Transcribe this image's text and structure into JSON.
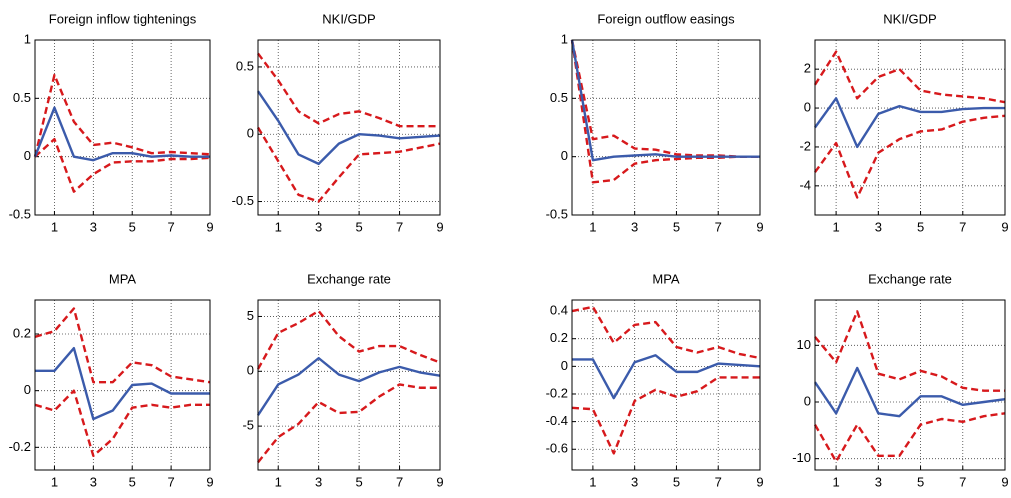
{
  "chart_data": [
    {
      "type": "line",
      "title": "Foreign inflow tightenings",
      "x": [
        0,
        1,
        2,
        3,
        4,
        5,
        6,
        7,
        8,
        9
      ],
      "xlim": [
        0,
        9
      ],
      "xticks": [
        1,
        3,
        5,
        7,
        9
      ],
      "ylim": [
        -0.5,
        1
      ],
      "yticks": [
        -0.5,
        0,
        0.5,
        1
      ],
      "grid": true,
      "series": [
        {
          "color": "#d7191c",
          "linestyle": "dashed",
          "values": [
            0,
            0.7,
            0.3,
            0.1,
            0.12,
            0.08,
            0.03,
            0.04,
            0.03,
            0.02
          ]
        },
        {
          "color": "#d7191c",
          "linestyle": "dashed",
          "values": [
            0,
            0.15,
            -0.3,
            -0.15,
            -0.05,
            -0.04,
            -0.04,
            -0.02,
            -0.02,
            -0.01
          ]
        },
        {
          "color": "#3b5bab",
          "linestyle": "solid",
          "values": [
            0,
            0.42,
            0,
            -0.03,
            0.03,
            0.03,
            0,
            0.01,
            0,
            0
          ]
        }
      ]
    },
    {
      "type": "line",
      "title": "NKI/GDP",
      "x": [
        0,
        1,
        2,
        3,
        4,
        5,
        6,
        7,
        8,
        9
      ],
      "xlim": [
        0,
        9
      ],
      "xticks": [
        1,
        3,
        5,
        7,
        9
      ],
      "ylim": [
        -0.6,
        0.7
      ],
      "yticks": [
        -0.5,
        0,
        0.5
      ],
      "grid": true,
      "series": [
        {
          "color": "#d7191c",
          "linestyle": "dashed",
          "values": [
            0.6,
            0.4,
            0.17,
            0.08,
            0.15,
            0.17,
            0.12,
            0.06,
            0.06,
            0.06
          ]
        },
        {
          "color": "#d7191c",
          "linestyle": "dashed",
          "values": [
            0.05,
            -0.2,
            -0.45,
            -0.5,
            -0.32,
            -0.15,
            -0.14,
            -0.13,
            -0.1,
            -0.07
          ]
        },
        {
          "color": "#3b5bab",
          "linestyle": "solid",
          "values": [
            0.32,
            0.1,
            -0.15,
            -0.22,
            -0.07,
            0,
            -0.01,
            -0.03,
            -0.02,
            -0.01
          ]
        }
      ]
    },
    {
      "type": "line",
      "title": "Foreign outflow easings",
      "x": [
        0,
        1,
        2,
        3,
        4,
        5,
        6,
        7,
        8,
        9
      ],
      "xlim": [
        0,
        9
      ],
      "xticks": [
        1,
        3,
        5,
        7,
        9
      ],
      "ylim": [
        -0.5,
        1
      ],
      "yticks": [
        -0.5,
        0,
        0.5,
        1
      ],
      "grid": true,
      "series": [
        {
          "color": "#d7191c",
          "linestyle": "dashed",
          "values": [
            1,
            0.15,
            0.18,
            0.07,
            0.06,
            0.02,
            0.01,
            0.01,
            0,
            0
          ]
        },
        {
          "color": "#d7191c",
          "linestyle": "dashed",
          "values": [
            1,
            -0.22,
            -0.2,
            -0.06,
            -0.03,
            -0.02,
            -0.01,
            -0.01,
            0,
            0
          ]
        },
        {
          "color": "#3b5bab",
          "linestyle": "solid",
          "values": [
            1,
            -0.03,
            0,
            0.01,
            0.02,
            0,
            0,
            0,
            0,
            0
          ]
        }
      ]
    },
    {
      "type": "line",
      "title": "NKI/GDP",
      "x": [
        0,
        1,
        2,
        3,
        4,
        5,
        6,
        7,
        8,
        9
      ],
      "xlim": [
        0,
        9
      ],
      "xticks": [
        1,
        3,
        5,
        7,
        9
      ],
      "ylim": [
        -5.5,
        3.5
      ],
      "yticks": [
        -4,
        -2,
        0,
        2
      ],
      "grid": true,
      "series": [
        {
          "color": "#d7191c",
          "linestyle": "dashed",
          "values": [
            1.2,
            2.9,
            0.5,
            1.6,
            2,
            0.9,
            0.7,
            0.6,
            0.5,
            0.3
          ]
        },
        {
          "color": "#d7191c",
          "linestyle": "dashed",
          "values": [
            -3.3,
            -1.8,
            -4.6,
            -2.3,
            -1.6,
            -1.2,
            -1.1,
            -0.7,
            -0.5,
            -0.4
          ]
        },
        {
          "color": "#3b5bab",
          "linestyle": "solid",
          "values": [
            -1,
            0.5,
            -2,
            -0.3,
            0.1,
            -0.2,
            -0.2,
            -0.05,
            0,
            0
          ]
        }
      ]
    },
    {
      "type": "line",
      "title": "MPA",
      "x": [
        0,
        1,
        2,
        3,
        4,
        5,
        6,
        7,
        8,
        9
      ],
      "xlim": [
        0,
        9
      ],
      "xticks": [
        1,
        3,
        5,
        7,
        9
      ],
      "ylim": [
        -0.28,
        0.32
      ],
      "yticks": [
        -0.2,
        0,
        0.2
      ],
      "grid": true,
      "series": [
        {
          "color": "#d7191c",
          "linestyle": "dashed",
          "values": [
            0.19,
            0.21,
            0.29,
            0.03,
            0.03,
            0.1,
            0.09,
            0.05,
            0.04,
            0.03
          ]
        },
        {
          "color": "#d7191c",
          "linestyle": "dashed",
          "values": [
            -0.05,
            -0.07,
            0,
            -0.23,
            -0.17,
            -0.06,
            -0.05,
            -0.06,
            -0.05,
            -0.05
          ]
        },
        {
          "color": "#3b5bab",
          "linestyle": "solid",
          "values": [
            0.07,
            0.07,
            0.15,
            -0.1,
            -0.07,
            0.02,
            0.025,
            -0.01,
            -0.01,
            -0.01
          ]
        }
      ]
    },
    {
      "type": "line",
      "title": "Exchange rate",
      "x": [
        0,
        1,
        2,
        3,
        4,
        5,
        6,
        7,
        8,
        9
      ],
      "xlim": [
        0,
        9
      ],
      "xticks": [
        1,
        3,
        5,
        7,
        9
      ],
      "ylim": [
        -9,
        6.5
      ],
      "yticks": [
        -5,
        0,
        5
      ],
      "grid": true,
      "series": [
        {
          "color": "#d7191c",
          "linestyle": "dashed",
          "values": [
            0.2,
            3.5,
            4.4,
            5.5,
            3.2,
            1.8,
            2.3,
            2.3,
            1.5,
            0.8
          ]
        },
        {
          "color": "#d7191c",
          "linestyle": "dashed",
          "values": [
            -8.3,
            -6,
            -4.8,
            -2.8,
            -3.8,
            -3.7,
            -2.3,
            -1.2,
            -1.5,
            -1.5
          ]
        },
        {
          "color": "#3b5bab",
          "linestyle": "solid",
          "values": [
            -4,
            -1.2,
            -0.3,
            1.2,
            -0.3,
            -0.9,
            -0.1,
            0.4,
            -0.1,
            -0.4
          ]
        }
      ]
    },
    {
      "type": "line",
      "title": "MPA",
      "x": [
        0,
        1,
        2,
        3,
        4,
        5,
        6,
        7,
        8,
        9
      ],
      "xlim": [
        0,
        9
      ],
      "xticks": [
        1,
        3,
        5,
        7,
        9
      ],
      "ylim": [
        -0.75,
        0.48
      ],
      "yticks": [
        -0.6,
        -0.4,
        -0.2,
        0,
        0.2,
        0.4
      ],
      "grid": true,
      "series": [
        {
          "color": "#d7191c",
          "linestyle": "dashed",
          "values": [
            0.4,
            0.43,
            0.17,
            0.3,
            0.32,
            0.14,
            0.1,
            0.14,
            0.09,
            0.06
          ]
        },
        {
          "color": "#d7191c",
          "linestyle": "dashed",
          "values": [
            -0.3,
            -0.31,
            -0.63,
            -0.25,
            -0.17,
            -0.22,
            -0.18,
            -0.08,
            -0.08,
            -0.08
          ]
        },
        {
          "color": "#3b5bab",
          "linestyle": "solid",
          "values": [
            0.05,
            0.05,
            -0.23,
            0.03,
            0.08,
            -0.04,
            -0.04,
            0.02,
            0.01,
            0
          ]
        }
      ]
    },
    {
      "type": "line",
      "title": "Exchange rate",
      "x": [
        0,
        1,
        2,
        3,
        4,
        5,
        6,
        7,
        8,
        9
      ],
      "xlim": [
        0,
        9
      ],
      "xticks": [
        1,
        3,
        5,
        7,
        9
      ],
      "ylim": [
        -12,
        18
      ],
      "yticks": [
        -10,
        0,
        10
      ],
      "grid": true,
      "series": [
        {
          "color": "#d7191c",
          "linestyle": "dashed",
          "values": [
            11.5,
            7,
            16,
            5,
            4,
            5.5,
            4.5,
            2.5,
            2,
            2
          ]
        },
        {
          "color": "#d7191c",
          "linestyle": "dashed",
          "values": [
            -4,
            -10.5,
            -4,
            -9.5,
            -9.5,
            -4,
            -3,
            -3.5,
            -2.5,
            -2
          ]
        },
        {
          "color": "#3b5bab",
          "linestyle": "solid",
          "values": [
            3.5,
            -2,
            6,
            -2,
            -2.5,
            1,
            1,
            -0.5,
            0,
            0.5
          ]
        }
      ]
    }
  ]
}
